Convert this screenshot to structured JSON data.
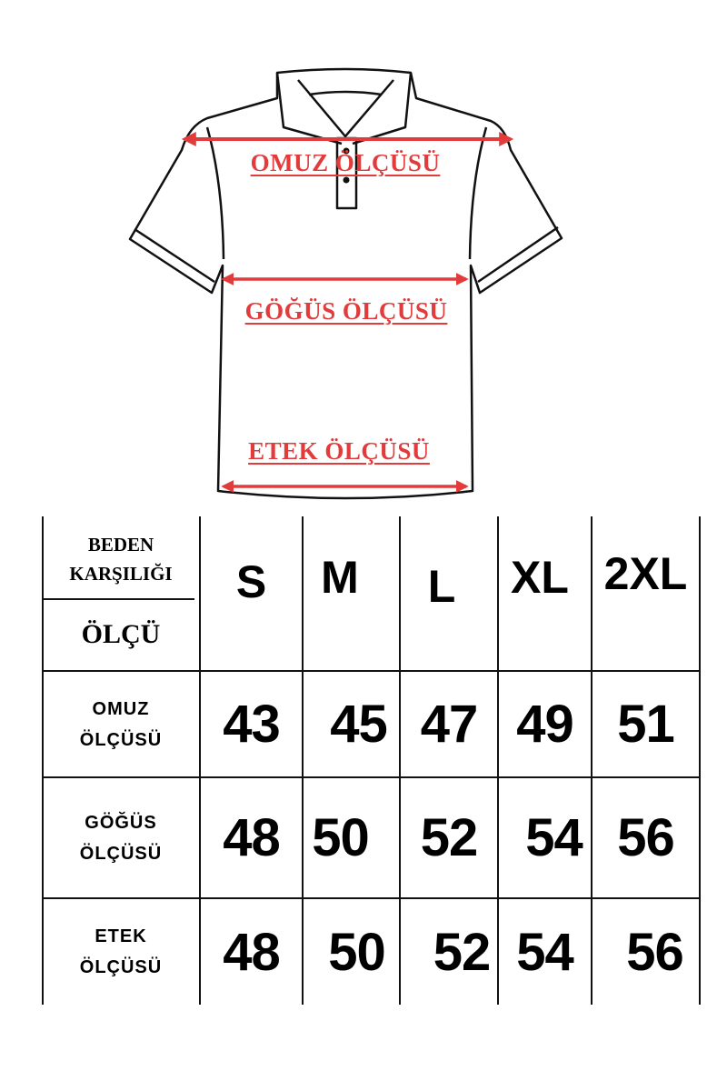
{
  "diagram": {
    "labels": {
      "shoulder": "OMUZ ÖLÇÜSÜ",
      "chest": "GÖĞÜS ÖLÇÜSÜ",
      "hem": "ETEK ÖLÇÜSÜ"
    },
    "accent_color": "#e23b3b"
  },
  "table": {
    "corner": {
      "top_line1": "BEDEN",
      "top_line2": "KARŞILIĞI",
      "bottom": "ÖLÇÜ"
    },
    "sizes": [
      "S",
      "M",
      "L",
      "XL",
      "2XL"
    ],
    "rows": [
      {
        "label1": "OMUZ",
        "label2": "ÖLÇÜSÜ",
        "values": [
          "43",
          "45",
          "47",
          "49",
          "51"
        ]
      },
      {
        "label1": "GÖĞÜS",
        "label2": "ÖLÇÜSÜ",
        "values": [
          "48",
          "50",
          "52",
          "54",
          "56"
        ]
      },
      {
        "label1": "ETEK",
        "label2": "ÖLÇÜSÜ",
        "values": [
          "48",
          "50",
          "52",
          "54",
          "56"
        ]
      }
    ]
  }
}
